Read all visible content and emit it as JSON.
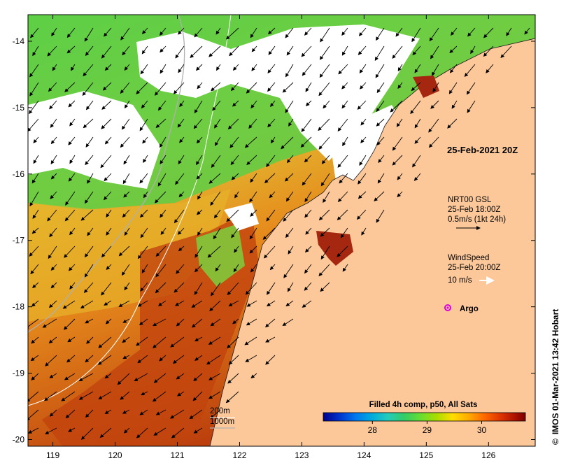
{
  "map": {
    "lon_ticks": [
      "119",
      "120",
      "121",
      "122",
      "123",
      "124",
      "125",
      "126"
    ],
    "lat_ticks": [
      "-14",
      "-15",
      "-16",
      "-17",
      "-18",
      "-19",
      "-20"
    ],
    "lon_range": [
      118.6,
      126.75
    ],
    "lat_range": [
      -20.1,
      -13.6
    ],
    "land_color": "#fcc89a",
    "cloud_color": "#ffffff"
  },
  "labels": {
    "date": "25-Feb-2021 20Z",
    "current_model": "NRT00 GSL",
    "current_time": "25-Feb 18:00Z",
    "current_scale": "0.5m/s (1kt 24h)",
    "wind_title": "WindSpeed",
    "wind_time": "25-Feb 20:00Z",
    "wind_scale": "10 m/s",
    "argo": "Argo",
    "isobath_200": "200m",
    "isobath_1000": "1000m",
    "colorbar_title": "Filled 4h comp, p50, All Sats",
    "colorbar_ticks": [
      "28",
      "29",
      "30"
    ],
    "credit": "IMOS 01-Mar-2021 13:42 Hobart",
    "credit_symbol": "©"
  },
  "colorbar": {
    "range": [
      27.1,
      30.8
    ],
    "tick_values": [
      28,
      29,
      30
    ],
    "colors": [
      "#00008b",
      "#0033cc",
      "#0077ee",
      "#00aadd",
      "#22ccbb",
      "#33cc66",
      "#66dd33",
      "#aadd00",
      "#ffdd00",
      "#ffaa00",
      "#ff6600",
      "#dd3300",
      "#aa1100",
      "#7a0000"
    ]
  }
}
